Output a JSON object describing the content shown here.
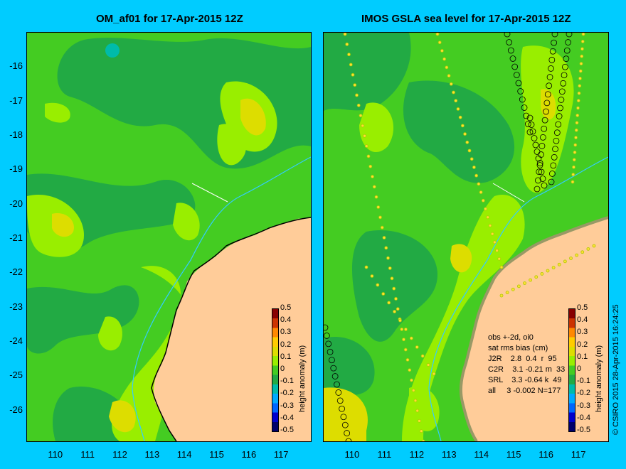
{
  "titles": {
    "left": "OM_af01 for 17-Apr-2015 12Z",
    "right": "IMOS GSLA sea level  for 17-Apr-2015 12Z"
  },
  "axes": {
    "lat_ticks": [
      "-16",
      "-17",
      "-18",
      "-19",
      "-20",
      "-21",
      "-22",
      "-23",
      "-24",
      "-25",
      "-26"
    ],
    "lon_ticks": [
      "110",
      "111",
      "112",
      "113",
      "114",
      "115",
      "116",
      "117"
    ],
    "lat_range": [
      -26.9,
      -15.0
    ],
    "lon_range": [
      109.1,
      117.9
    ]
  },
  "colorbar": {
    "ticks": [
      "0.5",
      "0.4",
      "0.3",
      "0.2",
      "0.1",
      "0",
      "-0.1",
      "-0.2",
      "-0.3",
      "-0.4",
      "-0.5"
    ],
    "label": "height anomaly (m)",
    "range": [
      -0.5,
      0.5
    ],
    "colors": [
      "#00006a",
      "#0000cc",
      "#0066ff",
      "#00aaff",
      "#00bbaa",
      "#22aa44",
      "#44cc22",
      "#99ee00",
      "#dddd00",
      "#ffcc00",
      "#ff8800",
      "#cc3300",
      "#880000"
    ]
  },
  "obs_box": {
    "line1": "obs +-2d, oi0",
    "line2": "sat rms bias (cm)",
    "rows": [
      "J2R    2.8  0.4  r  95",
      "C2R    3.1 -0.21 m  33",
      "SRL    3.3 -0.64 k  49",
      "all     3 -0.002 N=177"
    ]
  },
  "copyright": "© CSIRO 2015   28-Apr-2015 16:24:25",
  "colors": {
    "land": "#ffcc99",
    "ocean_base": "#44cc22",
    "ocean_dark": "#22aa44",
    "ocean_light": "#99ee00",
    "ocean_yellow": "#dddd00",
    "contour": "#33ccff",
    "background": "#00ccff"
  }
}
